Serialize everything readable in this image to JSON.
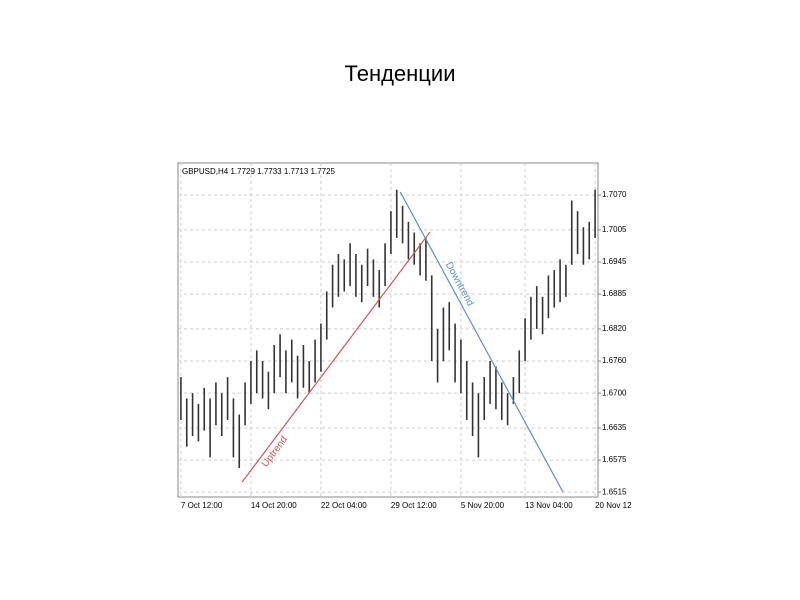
{
  "chart_data": {
    "type": "hlbar",
    "title": "Тенденции",
    "subtitle": "GBPUSD,H4  1.7729 1.7733 1.7713 1.7725",
    "color": "#333333",
    "grid": true,
    "xlim": [
      -0.5,
      71.5
    ],
    "ylim": [
      1.6506,
      1.713
    ],
    "xticks": [
      {
        "value": 0,
        "label": "7 Oct 12:00"
      },
      {
        "value": 12,
        "label": "14 Oct 20:00"
      },
      {
        "value": 24,
        "label": "22 Oct 04:00"
      },
      {
        "value": 36,
        "label": "29 Oct 12:00"
      },
      {
        "value": 48,
        "label": "5 Nov 20:00"
      },
      {
        "value": 59,
        "label": "13 Nov 04:00"
      },
      {
        "value": 71,
        "label": "20 Nov 12"
      }
    ],
    "yticks": [
      {
        "value": 1.707,
        "label": "1.7070"
      },
      {
        "value": 1.7005,
        "label": "1.7005"
      },
      {
        "value": 1.6945,
        "label": "1.6945"
      },
      {
        "value": 1.6885,
        "label": "1.6885"
      },
      {
        "value": 1.682,
        "label": "1.6820"
      },
      {
        "value": 1.676,
        "label": "1.6760"
      },
      {
        "value": 1.67,
        "label": "1.6700"
      },
      {
        "value": 1.6635,
        "label": "1.6635"
      },
      {
        "value": 1.6575,
        "label": "1.6575"
      },
      {
        "value": 1.6515,
        "label": "1.6515"
      }
    ],
    "high": [
      1.673,
      1.669,
      1.67,
      1.668,
      1.671,
      1.669,
      1.672,
      1.67,
      1.673,
      1.669,
      1.666,
      1.672,
      1.676,
      1.678,
      1.676,
      1.674,
      1.679,
      1.681,
      1.678,
      1.68,
      1.677,
      1.679,
      1.676,
      1.68,
      1.683,
      1.689,
      1.694,
      1.696,
      1.695,
      1.698,
      1.696,
      1.694,
      1.697,
      1.695,
      1.693,
      1.698,
      1.704,
      1.708,
      1.705,
      1.702,
      1.7,
      1.698,
      1.699,
      1.692,
      1.682,
      1.686,
      1.687,
      1.683,
      1.68,
      1.676,
      1.672,
      1.67,
      1.673,
      1.676,
      1.675,
      1.672,
      1.67,
      1.673,
      1.678,
      1.684,
      1.688,
      1.69,
      1.688,
      1.692,
      1.693,
      1.695,
      1.694,
      1.706,
      1.704,
      1.701,
      1.702,
      1.708
    ],
    "low": [
      1.665,
      1.66,
      1.662,
      1.661,
      1.663,
      1.658,
      1.664,
      1.662,
      1.665,
      1.658,
      1.656,
      1.664,
      1.668,
      1.67,
      1.669,
      1.667,
      1.67,
      1.673,
      1.67,
      1.672,
      1.669,
      1.671,
      1.67,
      1.672,
      1.674,
      1.68,
      1.686,
      1.688,
      1.689,
      1.69,
      1.688,
      1.687,
      1.69,
      1.688,
      1.686,
      1.69,
      1.696,
      1.699,
      1.698,
      1.695,
      1.694,
      1.692,
      1.691,
      1.676,
      1.672,
      1.676,
      1.678,
      1.672,
      1.67,
      1.665,
      1.662,
      1.658,
      1.665,
      1.668,
      1.667,
      1.665,
      1.664,
      1.668,
      1.67,
      1.676,
      1.68,
      1.682,
      1.681,
      1.684,
      1.686,
      1.687,
      1.688,
      1.694,
      1.696,
      1.694,
      1.695,
      1.699
    ],
    "trendlines": [
      {
        "label": "Uptrend",
        "color": "#d9534f",
        "x": [
          10.5,
          42.7
        ],
        "y": [
          1.6534,
          1.7001
        ]
      },
      {
        "label": "Downtrend",
        "color": "#5b8fd6",
        "x": [
          37.6,
          65.5
        ],
        "y": [
          1.7076,
          1.6515
        ]
      }
    ]
  }
}
